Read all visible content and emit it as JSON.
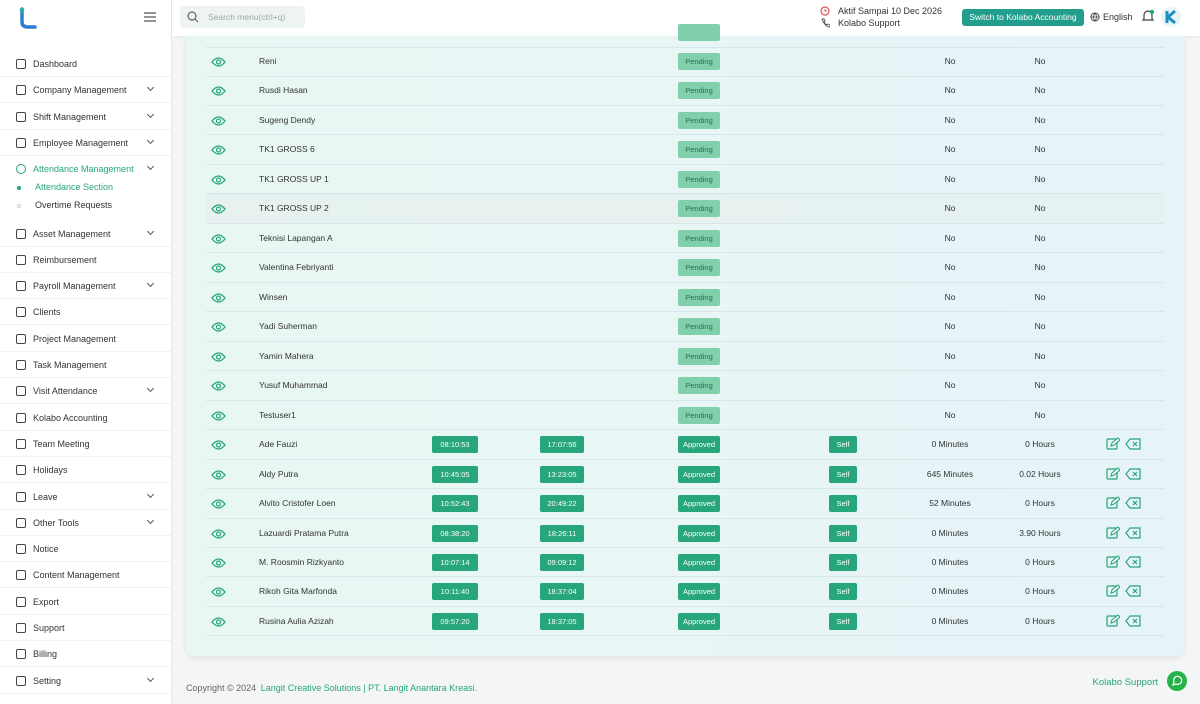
{
  "header": {
    "search_placeholder": "Search menu(ctrl+q)",
    "active_until": "Aktif Sampai 10 Dec 2026",
    "support": "Kolabo Support",
    "switch_button": "Switch to Kolabo Accounting",
    "language": "English"
  },
  "sidebar": {
    "menu": [
      {
        "label": "Dashboard",
        "expandable": false
      },
      {
        "label": "Company Management",
        "expandable": true
      },
      {
        "label": "Shift Management",
        "expandable": true
      },
      {
        "label": "Employee Management",
        "expandable": true
      },
      {
        "label": "Attendance Management",
        "expandable": true,
        "active": true,
        "children": [
          {
            "label": "Attendance Section",
            "active": true
          },
          {
            "label": "Overtime Requests",
            "active": false
          }
        ]
      },
      {
        "label": "Asset Management",
        "expandable": true
      },
      {
        "label": "Reimbursement",
        "expandable": false
      },
      {
        "label": "Payroll Management",
        "expandable": true
      },
      {
        "label": "Clients",
        "expandable": false
      },
      {
        "label": "Project Management",
        "expandable": false
      },
      {
        "label": "Task Management",
        "expandable": false
      },
      {
        "label": "Visit Attendance",
        "expandable": true
      },
      {
        "label": "Kolabo Accounting",
        "expandable": false
      },
      {
        "label": "Team Meeting",
        "expandable": false
      },
      {
        "label": "Holidays",
        "expandable": false
      },
      {
        "label": "Leave",
        "expandable": true
      },
      {
        "label": "Other Tools",
        "expandable": true
      },
      {
        "label": "Notice",
        "expandable": false
      },
      {
        "label": "Content Management",
        "expandable": false
      },
      {
        "label": "Export",
        "expandable": false
      },
      {
        "label": "Support",
        "expandable": false
      },
      {
        "label": "Billing",
        "expandable": false
      },
      {
        "label": "Setting",
        "expandable": true
      }
    ]
  },
  "table": {
    "rows": [
      {
        "name": "Reni",
        "status": "Pending",
        "extra": "No",
        "hours": "No"
      },
      {
        "name": "Rusdi Hasan",
        "status": "Pending",
        "extra": "No",
        "hours": "No"
      },
      {
        "name": "Sugeng Dendy",
        "status": "Pending",
        "extra": "No",
        "hours": "No"
      },
      {
        "name": "TK1 GROSS 6",
        "status": "Pending",
        "extra": "No",
        "hours": "No"
      },
      {
        "name": "TK1 GROSS UP 1",
        "status": "Pending",
        "extra": "No",
        "hours": "No"
      },
      {
        "name": "TK1 GROSS UP 2",
        "status": "Pending",
        "extra": "No",
        "hours": "No"
      },
      {
        "name": "Teknisi Lapangan A",
        "status": "Pending",
        "extra": "No",
        "hours": "No"
      },
      {
        "name": "Valentina Febriyanti",
        "status": "Pending",
        "extra": "No",
        "hours": "No"
      },
      {
        "name": "Winsen",
        "status": "Pending",
        "extra": "No",
        "hours": "No"
      },
      {
        "name": "Yadi Suherman",
        "status": "Pending",
        "extra": "No",
        "hours": "No"
      },
      {
        "name": "Yamin Mahera",
        "status": "Pending",
        "extra": "No",
        "hours": "No"
      },
      {
        "name": "Yusuf Muhammad",
        "status": "Pending",
        "extra": "No",
        "hours": "No"
      },
      {
        "name": "Testuser1",
        "status": "Pending",
        "extra": "No",
        "hours": "No"
      },
      {
        "name": "Ade Fauzi",
        "clock_in": "08:10:53",
        "clock_out": "17:07:56",
        "status": "Approved",
        "method": "Self",
        "extra": "0 Minutes",
        "hours": "0 Hours"
      },
      {
        "name": "Aldy Putra",
        "clock_in": "10:45:05",
        "clock_out": "13:23:05",
        "status": "Approved",
        "method": "Self",
        "extra": "645 Minutes",
        "hours": "0.02 Hours"
      },
      {
        "name": "Alvito Cristofer Loen",
        "clock_in": "10:52:43",
        "clock_out": "20:49:22",
        "status": "Approved",
        "method": "Self",
        "extra": "52 Minutes",
        "hours": "0 Hours"
      },
      {
        "name": "Lazuardi Pratama Putra",
        "clock_in": "08:38:20",
        "clock_out": "18:26:11",
        "status": "Approved",
        "method": "Self",
        "extra": "0 Minutes",
        "hours": "3.90 Hours"
      },
      {
        "name": "M. Roosmin Rizkyanto",
        "clock_in": "10:07:14",
        "clock_out": "09:09:12",
        "status": "Approved",
        "method": "Self",
        "extra": "0 Minutes",
        "hours": "0 Hours"
      },
      {
        "name": "Rikoh Gita Marfonda",
        "clock_in": "10:11:40",
        "clock_out": "18:37:04",
        "status": "Approved",
        "method": "Self",
        "extra": "0 Minutes",
        "hours": "0 Hours"
      },
      {
        "name": "Rusina Aulia Azizah",
        "clock_in": "09:57:20",
        "clock_out": "18:37:05",
        "status": "Approved",
        "method": "Self",
        "extra": "0 Minutes",
        "hours": "0 Hours"
      }
    ]
  },
  "footer": {
    "copyright": "Copyright © 2024",
    "company": "Langit Creative Solutions | PT. Langit Anantara Kreasi.",
    "whatsapp": "Kolabo Support"
  }
}
